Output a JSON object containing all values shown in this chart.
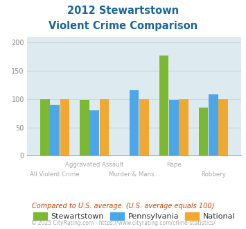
{
  "title_line1": "2012 Stewartstown",
  "title_line2": "Violent Crime Comparison",
  "stewartstown": [
    100,
    99,
    0,
    177,
    85
  ],
  "pennsylvania": [
    90,
    80,
    115,
    98,
    108
  ],
  "national": [
    100,
    100,
    100,
    100,
    100
  ],
  "colors": {
    "stewartstown": "#7db832",
    "pennsylvania": "#4da6e8",
    "national": "#f0a830"
  },
  "ylim": [
    0,
    210
  ],
  "yticks": [
    0,
    50,
    100,
    150,
    200
  ],
  "title_color": "#1a6699",
  "footer_note": "Compared to U.S. average. (U.S. average equals 100)",
  "copyright": "© 2025 CityRating.com - https://www.cityrating.com/crime-statistics/",
  "bg_color": "#ddeaef",
  "grid_color": "#c8d8df",
  "legend_labels": [
    "Stewartstown",
    "Pennsylvania",
    "National"
  ],
  "xtick_top": [
    "",
    "Aggravated Assault",
    "",
    "Rape",
    ""
  ],
  "xtick_bot": [
    "All Violent Crime",
    "",
    "Murder & Mans...",
    "",
    "Robbery"
  ],
  "xlabel_color": "#aaaaaa",
  "footer_color": "#cc4400",
  "copyright_color": "#aaaaaa"
}
